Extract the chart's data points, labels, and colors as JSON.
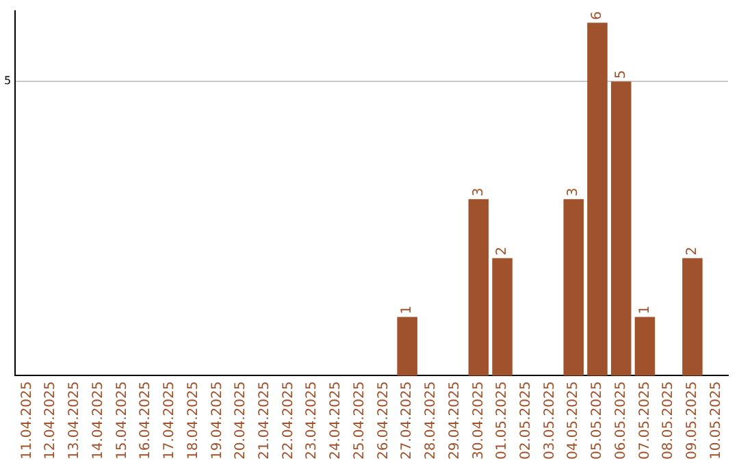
{
  "chart_data": {
    "type": "bar",
    "categories": [
      "11.04.2025",
      "12.04.2025",
      "13.04.2025",
      "14.04.2025",
      "15.04.2025",
      "16.04.2025",
      "17.04.2025",
      "18.04.2025",
      "19.04.2025",
      "20.04.2025",
      "21.04.2025",
      "22.04.2025",
      "23.04.2025",
      "24.04.2025",
      "25.04.2025",
      "26.04.2025",
      "27.04.2025",
      "28.04.2025",
      "29.04.2025",
      "30.04.2025",
      "01.05.2025",
      "02.05.2025",
      "03.05.2025",
      "04.05.2025",
      "05.05.2025",
      "06.05.2025",
      "07.05.2025",
      "08.05.2025",
      "09.05.2025",
      "10.05.2025"
    ],
    "values": [
      null,
      null,
      null,
      null,
      null,
      null,
      null,
      null,
      null,
      null,
      null,
      null,
      null,
      null,
      null,
      null,
      1,
      null,
      null,
      3,
      2,
      null,
      null,
      3,
      6,
      5,
      1,
      null,
      2,
      null
    ],
    "color": "#a0522d",
    "ylim": [
      0,
      6.2
    ],
    "yticks": [
      5
    ],
    "grid": "y",
    "data_labels": true,
    "legend": false
  }
}
